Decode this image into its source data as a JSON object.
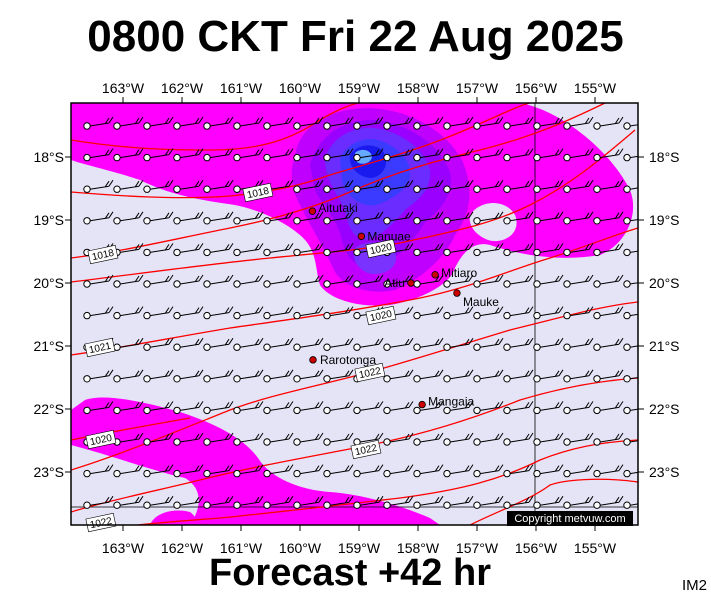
{
  "header": {
    "title": "0800 CKT Fri 22 Aug 2025"
  },
  "footer": {
    "subtitle": "Forecast +42 hr",
    "product": "IM2",
    "copyright": "Copyright metvuw.com"
  },
  "axes": {
    "lon_labels": [
      "163°W",
      "162°W",
      "161°W",
      "160°W",
      "159°W",
      "158°W",
      "157°W",
      "156°W",
      "155°W"
    ],
    "lat_labels": [
      "18°S",
      "19°S",
      "20°S",
      "21°S",
      "22°S",
      "23°S"
    ]
  },
  "colors": {
    "background": "#e4e4f6",
    "rain_light": "#ff00ff",
    "rain_mid": "#b000ff",
    "rain_heavy": "#2020ff",
    "isobar": "#ff0000",
    "place": "#cc0000"
  },
  "places": [
    {
      "name": "Aitutaki",
      "lon": -159.79,
      "lat": -18.86
    },
    {
      "name": "Manuae",
      "lon": -158.96,
      "lat": -19.26
    },
    {
      "name": "Mitiaro",
      "lon": -157.71,
      "lat": -19.87
    },
    {
      "name": "Atiu",
      "lon": -158.12,
      "lat": -20.0
    },
    {
      "name": "Mauke",
      "lon": -157.34,
      "lat": -20.16
    },
    {
      "name": "Rarotonga",
      "lon": -159.78,
      "lat": -21.22
    },
    {
      "name": "Mangaia",
      "lon": -157.93,
      "lat": -21.93
    }
  ],
  "isobar_labels": [
    "1018",
    "1018",
    "1020",
    "1020",
    "1021",
    "1022",
    "1022",
    "1020",
    "1022"
  ]
}
